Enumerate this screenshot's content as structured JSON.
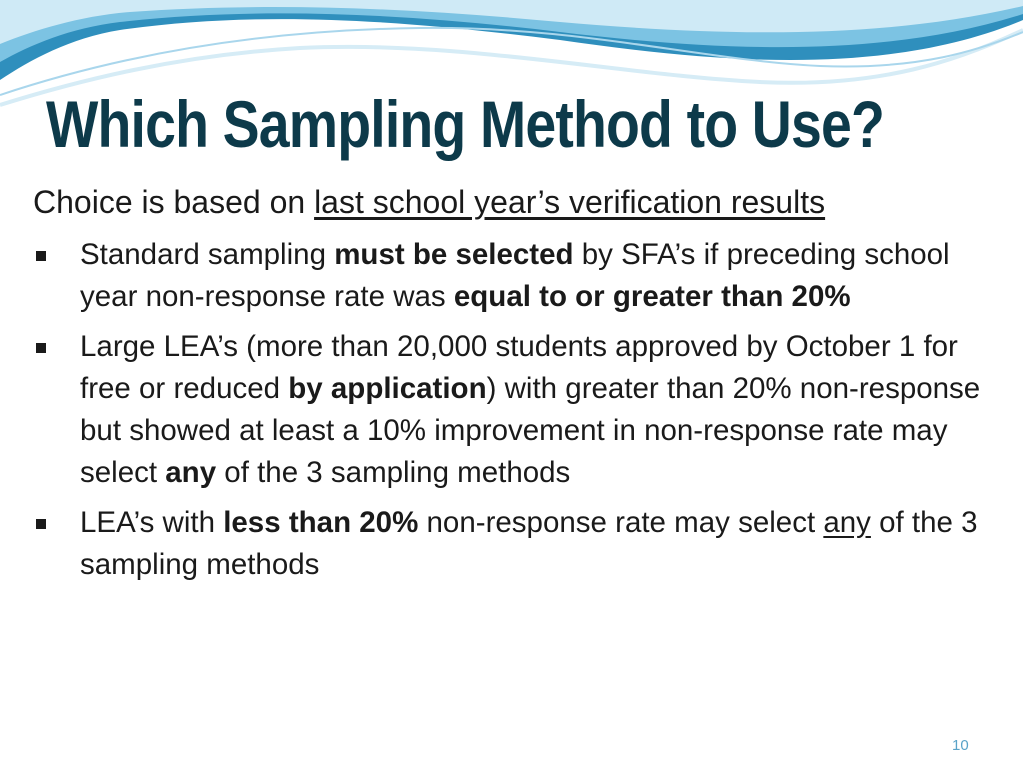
{
  "slide": {
    "title": "Which Sampling Method to Use?",
    "intro": {
      "lead": "Choice is based on ",
      "underlined": "last school year’s verification results"
    },
    "bullets": [
      {
        "t1": "Standard sampling ",
        "b1": "must be selected",
        "t2": " by SFA’s if preceding school year non-response rate was ",
        "b2": "equal to or greater than 20%"
      },
      {
        "t1": "Large LEA’s (more than 20,000 students approved by October 1 for free or reduced ",
        "b1": "by application",
        "t2": ") with greater than 20% non-response but showed at least a 10% improvement in non-response rate may select ",
        "b2": "any",
        "t3": " of the 3 sampling methods"
      },
      {
        "t1": "LEA’s with ",
        "b1": "less than 20%",
        "t2": " non-response rate may select ",
        "u1": "any",
        "t3": " of the 3 sampling methods"
      }
    ],
    "page_number": "10"
  },
  "theme": {
    "title_color": "#0d3a4a",
    "wave_colors": [
      "#2f8fbd",
      "#7cc3e3",
      "#cfeaf6"
    ],
    "page_number_color": "#5aa3c8"
  }
}
